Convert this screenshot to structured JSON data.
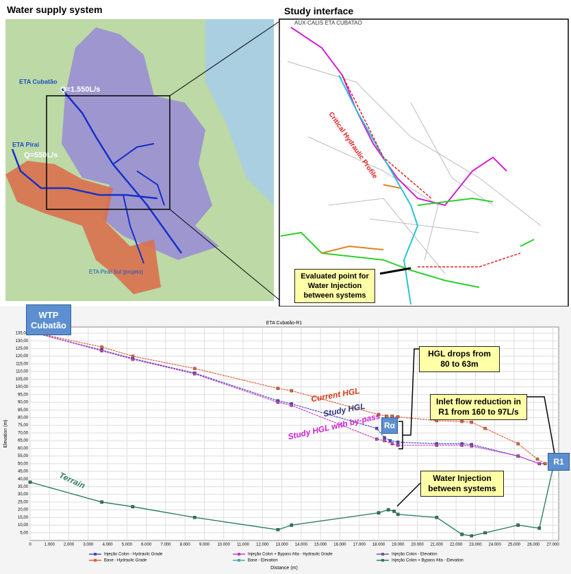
{
  "maps": {
    "left": {
      "title": "Water supply system",
      "labels": [
        "ETA Cubatão",
        "Q=1.550L/s",
        "ETA Piraí",
        "Q=550L/s",
        "ETA Piraí Sul (projeto)"
      ]
    },
    "right": {
      "title": "Study interface",
      "labels": [
        "AUX-CALIS ETA CUBATAO",
        "Critical Hydraulic Profile"
      ],
      "callout": "Evaluated point for Water Injection between systems"
    }
  },
  "chart_data": {
    "type": "line",
    "title": "ETA Cubatão-R1",
    "x_label": "Distance (m)",
    "y_label": "Elevation (m)",
    "xlim": [
      0,
      27300
    ],
    "ylim": [
      0,
      139
    ],
    "xticks": [
      0,
      {
        "value": 1000,
        "label": "1.000"
      },
      {
        "value": 2000,
        "label": "2.000"
      },
      {
        "value": 3000,
        "label": "3.000"
      },
      {
        "value": 4000,
        "label": "4.000"
      },
      {
        "value": 5000,
        "label": "5.000"
      },
      {
        "value": 6000,
        "label": "6.000"
      },
      {
        "value": 7000,
        "label": "7.000"
      },
      {
        "value": 8000,
        "label": "8.000"
      },
      {
        "value": 9000,
        "label": "9.000"
      },
      {
        "value": 10000,
        "label": "10.000"
      },
      {
        "value": 11000,
        "label": "11.000"
      },
      {
        "value": 12000,
        "label": "12.000"
      },
      {
        "value": 13000,
        "label": "13.000"
      },
      {
        "value": 14000,
        "label": "14.000"
      },
      {
        "value": 15000,
        "label": "15.000"
      },
      {
        "value": 16000,
        "label": "16.000"
      },
      {
        "value": 17000,
        "label": "17.000"
      },
      {
        "value": 18000,
        "label": "18.000"
      },
      {
        "value": 19000,
        "label": "19.000"
      },
      {
        "value": 20000,
        "label": "20.000"
      },
      {
        "value": 21000,
        "label": "21.000"
      },
      {
        "value": 22000,
        "label": "22.000"
      },
      {
        "value": 23000,
        "label": "23.000"
      },
      {
        "value": 24000,
        "label": "24.000"
      },
      {
        "value": 25000,
        "label": "25.000"
      },
      {
        "value": 26000,
        "label": "26.000"
      },
      {
        "value": 27000,
        "label": "27.000"
      }
    ],
    "yticks": [
      {
        "value": 5,
        "label": "5,00"
      },
      {
        "value": 10,
        "label": "10,00"
      },
      {
        "value": 15,
        "label": "15,00"
      },
      {
        "value": 20,
        "label": "20,00"
      },
      {
        "value": 25,
        "label": "25,00"
      },
      {
        "value": 30,
        "label": "30,00"
      },
      {
        "value": 35,
        "label": "35,00"
      },
      {
        "value": 40,
        "label": "40,00"
      },
      {
        "value": 45,
        "label": "45,00"
      },
      {
        "value": 50,
        "label": "50,00"
      },
      {
        "value": 55,
        "label": "55,00"
      },
      {
        "value": 60,
        "label": "60,00"
      },
      {
        "value": 65,
        "label": "65,00"
      },
      {
        "value": 70,
        "label": "70,00"
      },
      {
        "value": 75,
        "label": "75,00"
      },
      {
        "value": 80,
        "label": "80,00"
      },
      {
        "value": 85,
        "label": "85,00"
      },
      {
        "value": 90,
        "label": "90,00"
      },
      {
        "value": 95,
        "label": "95,00"
      },
      {
        "value": 100,
        "label": "100,00"
      },
      {
        "value": 105,
        "label": "105,00"
      },
      {
        "value": 110,
        "label": "110,00"
      },
      {
        "value": 115,
        "label": "115,00"
      },
      {
        "value": 120,
        "label": "120,00"
      },
      {
        "value": 125,
        "label": "125,00"
      },
      {
        "value": 130,
        "label": "130,00"
      },
      {
        "value": 135,
        "label": "135,00"
      }
    ],
    "grid": true,
    "legend": "bottom",
    "series": [
      {
        "name": "Injeção Colon - Hydraulic Grade",
        "color": "#4a4ac0",
        "x": [
          0,
          3700,
          5300,
          8500,
          12800,
          13500,
          17900,
          18300,
          18600,
          19000,
          21000,
          22300,
          22800,
          25200,
          26300,
          26600
        ],
        "values": [
          136,
          124,
          118.5,
          109,
          91,
          89,
          73,
          67,
          65,
          64,
          63,
          63,
          62.5,
          55,
          50,
          50
        ]
      },
      {
        "name": "Injeção Colon + Bypass Alta - Hydraulic Grade",
        "color": "#c040c8",
        "x": [
          0,
          3700,
          5300,
          8500,
          12800,
          13500,
          17900,
          18300,
          18700,
          19000,
          21000,
          22300,
          22800,
          25200,
          26300,
          26600
        ],
        "values": [
          136,
          123.5,
          118,
          108.5,
          90,
          88,
          66,
          65,
          63,
          62,
          62,
          62,
          61.5,
          55,
          50,
          50
        ]
      },
      {
        "name": "Injeção Colon - Elevation",
        "color": "#6a5a9a",
        "x": [
          0,
          3700,
          5300,
          8500,
          12800,
          13500,
          18000,
          18500,
          18800,
          19000,
          21000,
          22300,
          22800,
          23500,
          25200,
          26300,
          27000
        ],
        "values": [
          38,
          25,
          22,
          15,
          7,
          10,
          18,
          20,
          19,
          17,
          15,
          4,
          3,
          5,
          10,
          8,
          47
        ]
      },
      {
        "name": "Base - Hydraulic Grade",
        "color": "#e2603a",
        "x": [
          0,
          3700,
          5300,
          8500,
          12800,
          13500,
          18000,
          18400,
          18700,
          19000,
          21000,
          22300,
          22800,
          23500,
          25200,
          26200,
          26600
        ],
        "values": [
          136,
          126,
          120,
          112,
          99,
          97.5,
          82,
          81,
          81,
          80.5,
          78,
          77.5,
          77,
          73,
          63,
          53,
          50
        ]
      },
      {
        "name": "Base - Elevation",
        "color": "#4aa8a8",
        "x": [
          0,
          3700,
          5300,
          8500,
          12800,
          13500,
          18000,
          18500,
          18800,
          19000,
          21000,
          22300,
          22800,
          23500,
          25200,
          26300,
          27000
        ],
        "values": [
          38,
          25,
          22,
          15,
          7,
          10,
          18,
          20,
          19,
          17,
          15,
          4,
          3,
          5,
          10,
          8,
          47
        ]
      },
      {
        "name": "Injeção Colon + Bypass Alta - Elevation",
        "color": "#2e7d5e",
        "x": [
          0,
          3700,
          5300,
          8500,
          12800,
          13500,
          18000,
          18500,
          18800,
          19000,
          21000,
          22300,
          22800,
          23500,
          25200,
          26300,
          27000
        ],
        "values": [
          38,
          25,
          22,
          15,
          7,
          10,
          18,
          20,
          19,
          17,
          15,
          4,
          3,
          5,
          10,
          8,
          47
        ]
      }
    ],
    "annotations": [
      "Current HGL",
      "Study HGL",
      "Study HGL with by-pass",
      "Terrain",
      "HGL drops from 80 to 63m",
      "Inlet flow reduction in R1 from 160 to 97L/s",
      "Water Injection between systems",
      "WTP Cubatão",
      "Rα",
      "R1"
    ]
  }
}
